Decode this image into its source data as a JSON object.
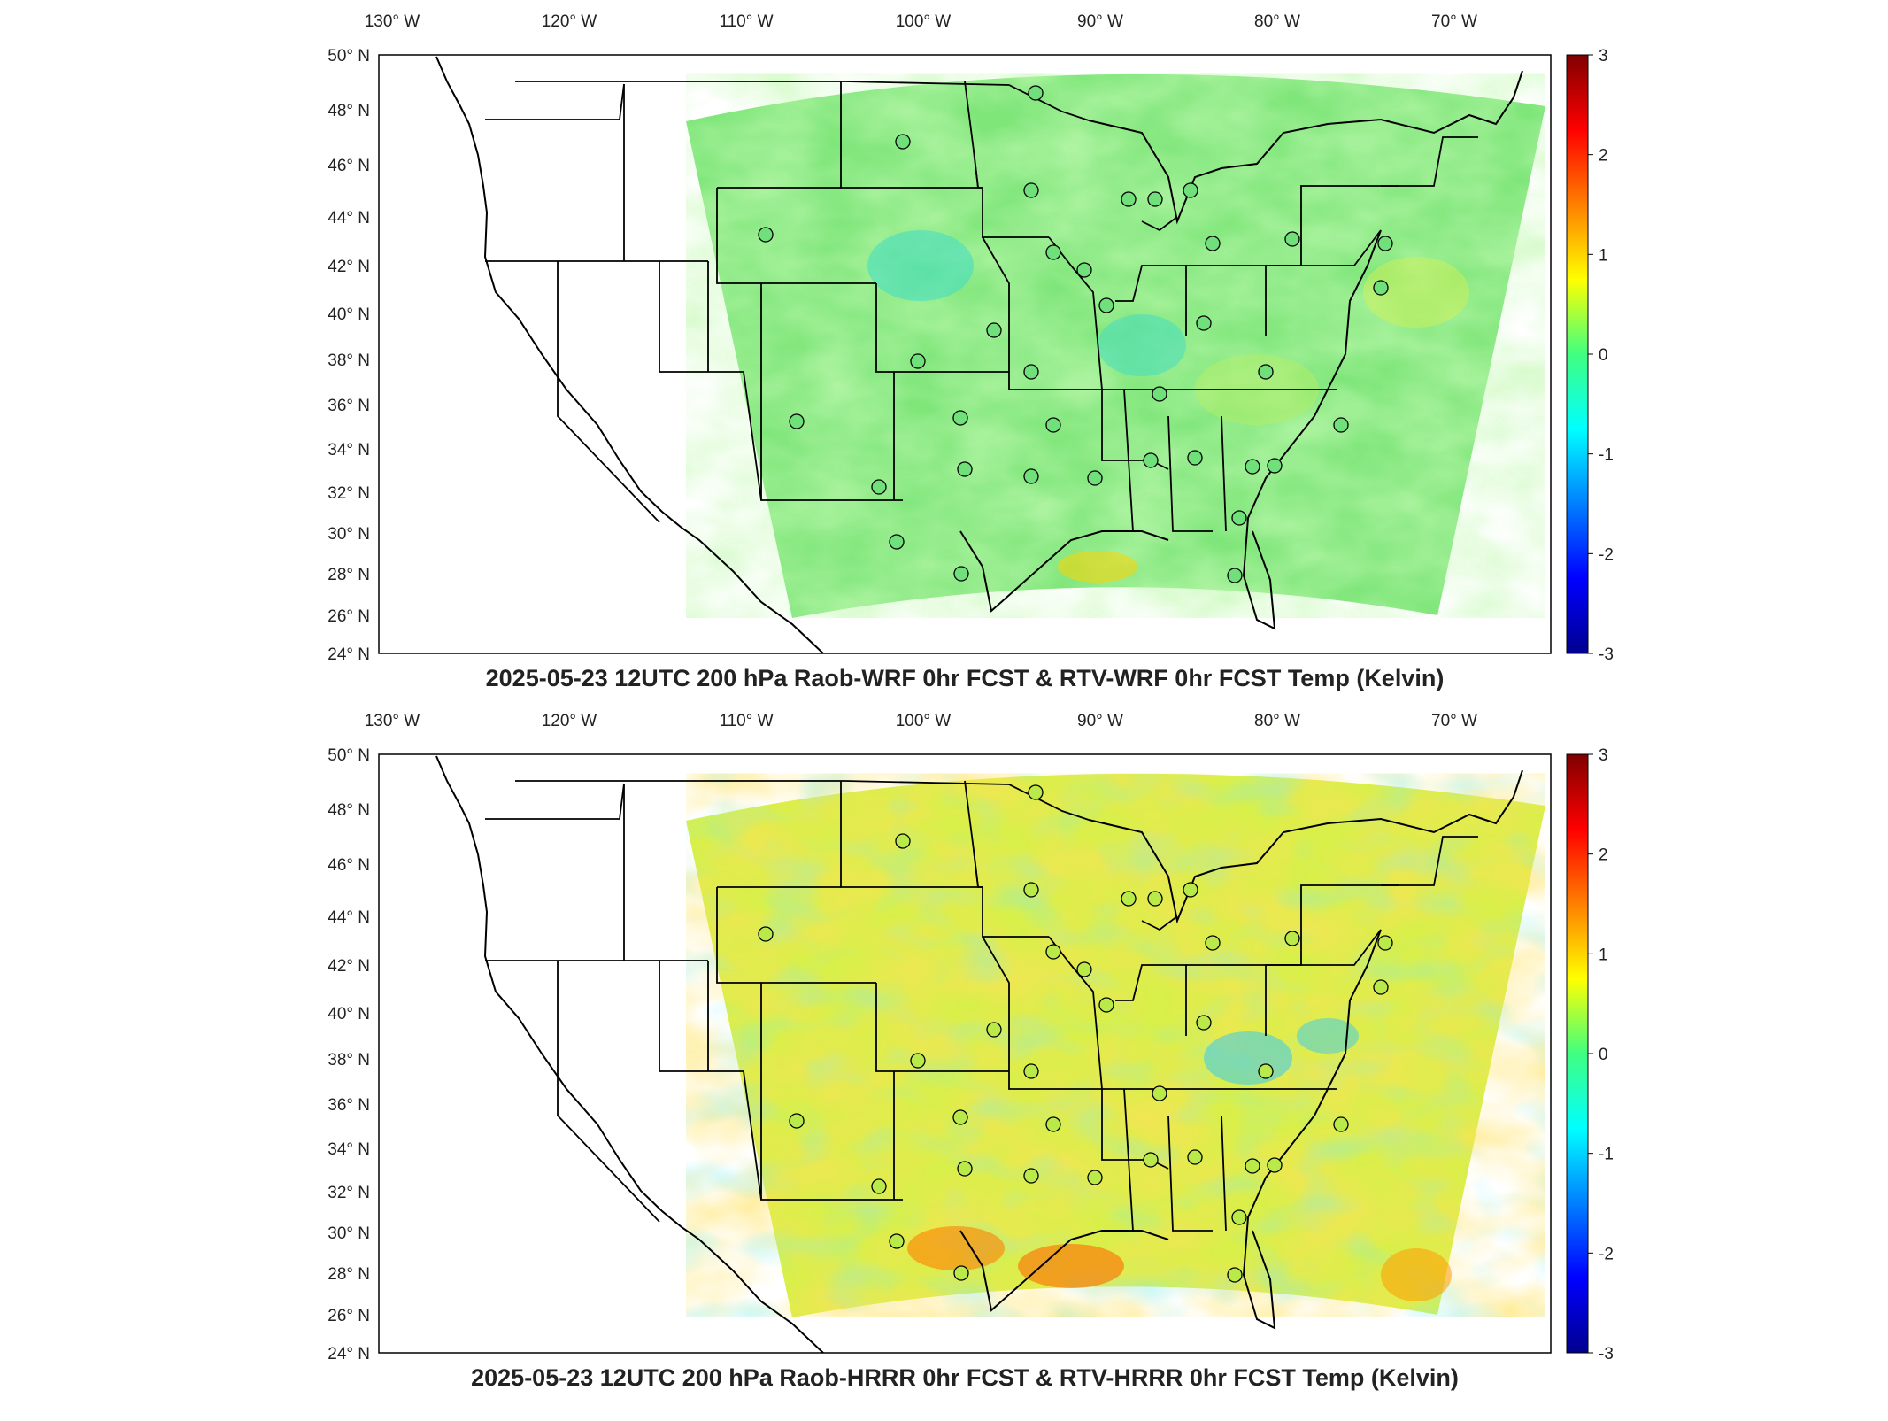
{
  "lon_labels": [
    "130° W",
    "120° W",
    "110° W",
    "100° W",
    "90° W",
    "80° W",
    "70° W"
  ],
  "lat_labels": [
    "50° N",
    "48° N",
    "46° N",
    "44° N",
    "42° N",
    "40° N",
    "38° N",
    "36° N",
    "34° N",
    "32° N",
    "30° N",
    "28° N",
    "26° N",
    "24° N"
  ],
  "colorbar": {
    "ticks": [
      "3",
      "2",
      "1",
      "0",
      "-1",
      "-2",
      "-3"
    ],
    "units": "Kelvin",
    "min": -3,
    "max": 3
  },
  "panels": [
    {
      "id": "top",
      "title": "2025-05-23 12UTC 200 hPa Raob-WRF 0hr FCST & RTV-WRF 0hr FCST Temp (Kelvin)",
      "field_tone": "green-cool",
      "field_bias": 0.0
    },
    {
      "id": "bottom",
      "title": "2025-05-23 12UTC 200 hPa Raob-HRRR 0hr FCST & RTV-HRRR 0hr FCST Temp (Kelvin)",
      "field_tone": "yellow-warm",
      "field_bias": 0.6
    }
  ],
  "colors": {
    "frame": "#000000",
    "border": "#000000",
    "field_low": "#00008f",
    "field_high": "#800000"
  }
}
